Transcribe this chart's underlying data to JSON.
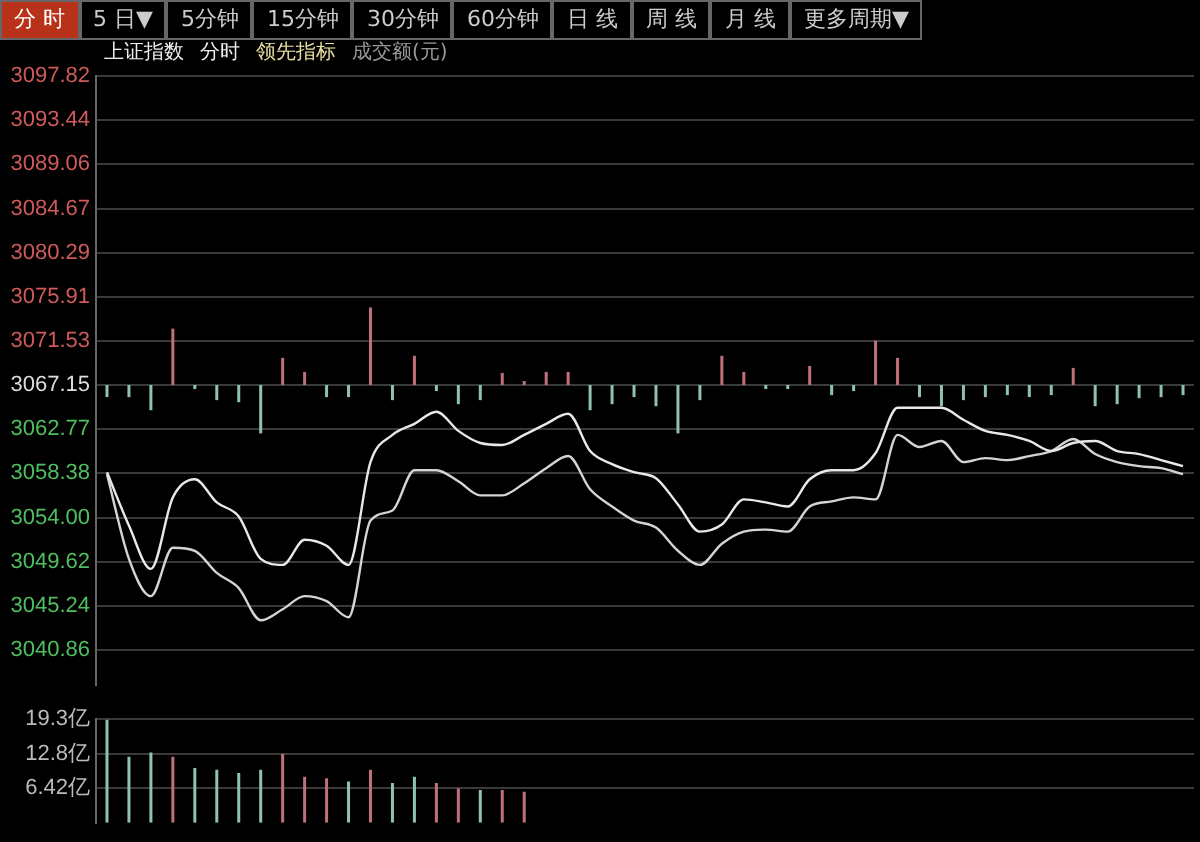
{
  "chart_data": [
    {
      "type": "other",
      "annotations": [
        "分 时",
        "5 日▼",
        "5分钟",
        "15分钟",
        "30分钟",
        "60分钟",
        "日 线",
        "周 线",
        "月 线",
        "更多周期▼"
      ]
    },
    {
      "type": "line",
      "annotations": [
        "上证指数",
        "分时",
        "领先指标",
        "成交额(元)"
      ],
      "marker": "none",
      "grid": "y",
      "categories": [
        null,
        null,
        null,
        null,
        null,
        null,
        null,
        null,
        null,
        null,
        null,
        null,
        null,
        null,
        null,
        null,
        null,
        null,
        null,
        null,
        null,
        null,
        null,
        null,
        null,
        null,
        null,
        null,
        null,
        null,
        null,
        null,
        null,
        null,
        null,
        null,
        null,
        null,
        null,
        null,
        null,
        null,
        null,
        null,
        null,
        null,
        null,
        null,
        null,
        null
      ],
      "ylim": [
        3037.4,
        3097.82
      ],
      "yticks": [
        3040.86,
        3045.24,
        3049.62,
        {
          "value": 3054,
          "label": "3054.00"
        },
        3058.38,
        3062.77,
        3067.15,
        3071.53,
        3075.91,
        3080.29,
        3084.67,
        3089.06,
        3093.44,
        3097.82
      ],
      "series": [
        {
          "type": "bar",
          "base": [
            3067.15,
            3067.15,
            3067.15,
            3067.15,
            3067.15,
            3067.15,
            3067.15,
            3067.15,
            3067.15,
            3067.15,
            3067.15,
            3067.15,
            3067.15,
            3067.15,
            3067.15,
            3067.15,
            3067.15,
            3067.15,
            3067.15,
            3067.15,
            3067.15,
            3067.15,
            3067.15,
            3067.15,
            3067.15,
            3067.15,
            3067.15,
            3067.15,
            3067.15,
            3067.15,
            3067.15,
            3067.15,
            3067.15,
            3067.15,
            3067.15,
            3067.15,
            3067.15,
            3067.15,
            3067.15,
            3067.15,
            3067.15,
            3067.15,
            3067.15,
            3067.15,
            3067.15,
            3067.15,
            3067.15,
            3067.15,
            3067.15,
            3067.15
          ],
          "values": [
            -1.2,
            -1.2,
            -2.5,
            5.6,
            -0.4,
            -1.5,
            -1.7,
            -4.8,
            2.7,
            1.3,
            -1.2,
            -1.2,
            7.7,
            -1.5,
            2.9,
            -0.6,
            -1.9,
            -1.5,
            1.2,
            0.4,
            1.3,
            1.3,
            -2.5,
            -1.9,
            -1.2,
            -2.1,
            -4.8,
            -1.5,
            2.9,
            1.3,
            -0.4,
            -0.4,
            1.9,
            -1.0,
            -0.6,
            4.4,
            2.7,
            -1.2,
            -2.1,
            -1.5,
            -1.2,
            -1.0,
            -1.2,
            -1.0,
            1.7,
            -2.1,
            -1.9,
            -1.3,
            -1.2,
            -1.0
          ],
          "colors": [
            "#8fc1b8",
            "#8fc1b8",
            "#8fc1b8",
            "#c0707a",
            "#8fc1b8",
            "#8fc1b8",
            "#8fc1b8",
            "#8fc1b8",
            "#c0707a",
            "#c0707a",
            "#8fc1b8",
            "#8fc1b8",
            "#c0707a",
            "#8fc1b8",
            "#c0707a",
            "#8fc1b8",
            "#8fc1b8",
            "#8fc1b8",
            "#c0707a",
            "#c0707a",
            "#c0707a",
            "#c0707a",
            "#8fc1b8",
            "#8fc1b8",
            "#8fc1b8",
            "#8fc1b8",
            "#8fc1b8",
            "#8fc1b8",
            "#c0707a",
            "#c0707a",
            "#8fc1b8",
            "#8fc1b8",
            "#c0707a",
            "#8fc1b8",
            "#8fc1b8",
            "#c0707a",
            "#c0707a",
            "#8fc1b8",
            "#8fc1b8",
            "#8fc1b8",
            "#8fc1b8",
            "#8fc1b8",
            "#8fc1b8",
            "#8fc1b8",
            "#c0707a",
            "#8fc1b8",
            "#8fc1b8",
            "#8fc1b8",
            "#8fc1b8",
            "#8fc1b8"
          ]
        },
        {
          "color": "#e8e8e8",
          "values": [
            3058.5,
            3053.2,
            3048.9,
            3056.0,
            3057.8,
            3055.5,
            3054.1,
            3049.9,
            3049.3,
            3051.8,
            3051.2,
            3049.3,
            3059.5,
            3062.2,
            3063.3,
            3064.5,
            3062.6,
            3061.4,
            3061.2,
            3062.2,
            3063.3,
            3064.3,
            3060.6,
            3059.3,
            3058.5,
            3057.9,
            3055.3,
            3052.6,
            3053.3,
            3055.8,
            3055.5,
            3055.1,
            3057.8,
            3058.7,
            3058.7,
            3060.4,
            3064.9,
            3064.9,
            3064.9,
            3063.7,
            3062.6,
            3062.2,
            3061.6,
            3060.6,
            3061.4,
            3061.6,
            3060.6,
            3060.3,
            3059.7,
            3059.1
          ]
        },
        {
          "color": "#d4d4d4",
          "values": [
            3058.3,
            3049.9,
            3046.2,
            3051.0,
            3050.7,
            3048.5,
            3047.0,
            3043.8,
            3044.9,
            3046.2,
            3045.7,
            3044.1,
            3053.7,
            3054.7,
            3058.7,
            3058.7,
            3057.6,
            3056.2,
            3056.2,
            3057.4,
            3058.9,
            3060.1,
            3056.8,
            3055.1,
            3053.7,
            3053.0,
            3050.7,
            3049.3,
            3051.4,
            3052.6,
            3052.8,
            3052.6,
            3055.1,
            3055.6,
            3056.0,
            3055.8,
            3062.2,
            3061.0,
            3061.6,
            3059.5,
            3059.9,
            3059.7,
            3060.1,
            3060.6,
            3061.8,
            3060.3,
            3059.5,
            3059.1,
            3058.9,
            3058.3
          ]
        }
      ]
    },
    {
      "type": "bar",
      "grid": "y",
      "categories": [
        null,
        null,
        null,
        null,
        null,
        null,
        null,
        null,
        null,
        null,
        null,
        null,
        null,
        null,
        null,
        null,
        null,
        null,
        null,
        null,
        null,
        null,
        null,
        null,
        null,
        null,
        null,
        null,
        null,
        null,
        null,
        null,
        null,
        null,
        null,
        null,
        null,
        null,
        null,
        null,
        null,
        null,
        null,
        null,
        null,
        null,
        null,
        null,
        null,
        null
      ],
      "ylim": [
        0,
        19.3
      ],
      "yticks": [
        {
          "value": 6.42,
          "label": "6.42亿"
        },
        {
          "value": 12.8,
          "label": "12.8亿"
        },
        {
          "value": 19.3,
          "label": "19.3亿"
        }
      ],
      "values": [
        19.2,
        12.3,
        13.1,
        12.3,
        10.2,
        9.9,
        9.3,
        9.9,
        12.8,
        8.6,
        8.3,
        7.7,
        9.9,
        7.4,
        8.6,
        7.4,
        6.4,
        6.1,
        6.1,
        5.8,
        null,
        null,
        null,
        null,
        null,
        null,
        null,
        null,
        null,
        null,
        null,
        null,
        null,
        null,
        null,
        null,
        null,
        null,
        null,
        null,
        null,
        null,
        null,
        null,
        null,
        null,
        null,
        null,
        null,
        null
      ],
      "colors": [
        "#8fc1b8",
        "#8fc1b8",
        "#8fc1b8",
        "#c0707a",
        "#8fc1b8",
        "#8fc1b8",
        "#8fc1b8",
        "#8fc1b8",
        "#c0707a",
        "#c0707a",
        "#c0707a",
        "#8fc1b8",
        "#c0707a",
        "#8fc1b8",
        "#8fc1b8",
        "#c0707a",
        "#c0707a",
        "#8fc1b8",
        "#c0707a",
        "#c0707a",
        "#8fc1b8",
        "#8fc1b8",
        "#8fc1b8",
        "#8fc1b8",
        "#8fc1b8",
        "#8fc1b8",
        "#8fc1b8",
        "#8fc1b8",
        "#8fc1b8",
        "#8fc1b8",
        "#8fc1b8",
        "#8fc1b8",
        "#8fc1b8",
        "#8fc1b8",
        "#8fc1b8",
        "#8fc1b8",
        "#8fc1b8",
        "#8fc1b8",
        "#8fc1b8",
        "#8fc1b8",
        "#8fc1b8",
        "#8fc1b8",
        "#8fc1b8",
        "#8fc1b8",
        "#8fc1b8",
        "#8fc1b8",
        "#8fc1b8",
        "#8fc1b8",
        "#8fc1b8",
        "#8fc1b8"
      ]
    }
  ]
}
